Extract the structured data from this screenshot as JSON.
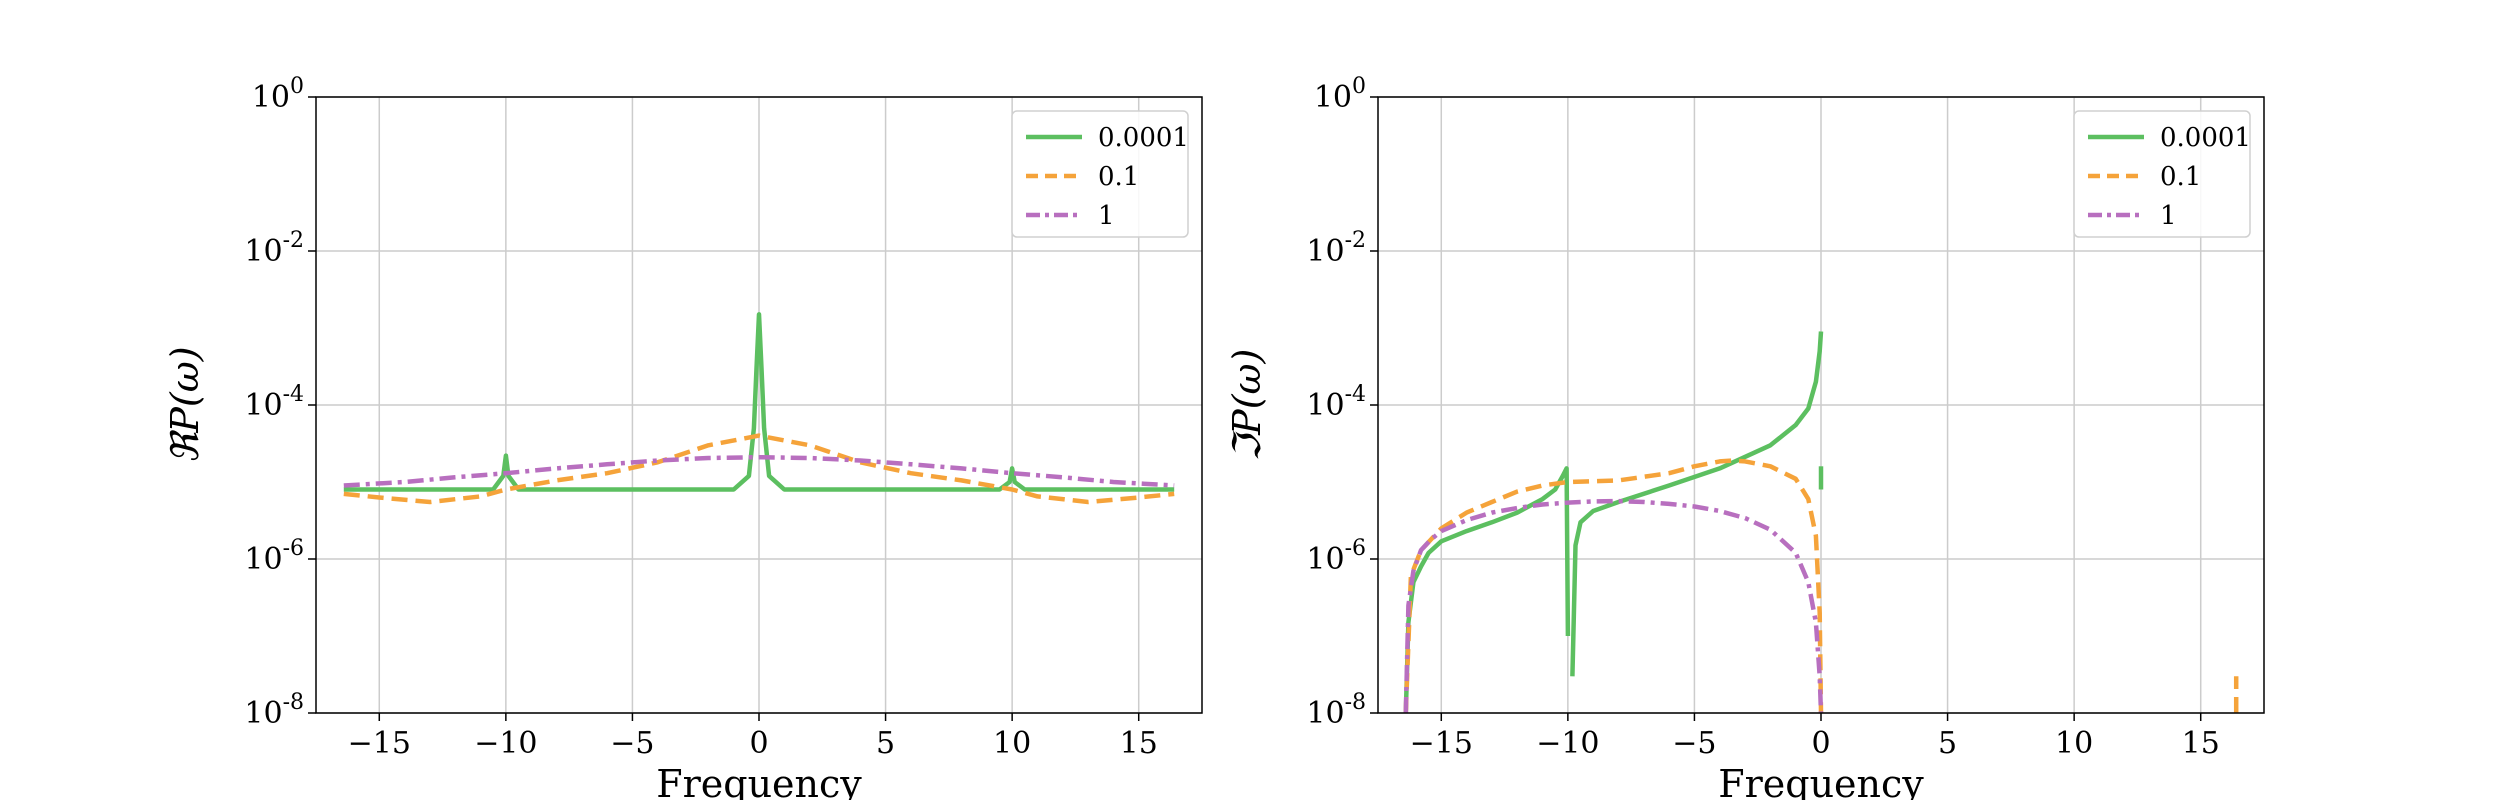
{
  "chart_data": [
    {
      "type": "line",
      "xlabel": "Frequency",
      "ylabel": "ℜP(ω)",
      "xlim": [
        -17.5,
        17.5
      ],
      "ylim": [
        1e-08,
        1
      ],
      "yscale": "log",
      "grid": true,
      "legend_position": "top-right",
      "xticks": [
        "−15",
        "−10",
        "−5",
        "0",
        "5",
        "10",
        "15"
      ],
      "xtick_values": [
        -15,
        -10,
        -5,
        0,
        5,
        10,
        15
      ],
      "yticks": [
        {
          "base": "10",
          "exp": "0"
        },
        {
          "base": "10",
          "exp": "-2"
        },
        {
          "base": "10",
          "exp": "-4"
        },
        {
          "base": "10",
          "exp": "-6"
        },
        {
          "base": "10",
          "exp": "-8"
        }
      ],
      "ytick_values": [
        1,
        0.01,
        0.0001,
        1e-06,
        1e-08
      ],
      "series": [
        {
          "name": "0.0001",
          "color": "#5cbf60",
          "dash": "solid",
          "x": [
            -16.4,
            -12,
            -10.5,
            -10.1,
            -10,
            -9.9,
            -9.5,
            -5,
            -1,
            -0.4,
            -0.2,
            -0.1,
            0,
            0.1,
            0.2,
            0.4,
            1,
            5,
            9.5,
            9.9,
            10,
            10.1,
            10.5,
            12,
            16.4
          ],
          "y": [
            8e-06,
            8e-06,
            8e-06,
            1.2e-05,
            2.2e-05,
            1.2e-05,
            8e-06,
            8e-06,
            8e-06,
            1.2e-05,
            5e-05,
            0.0003,
            0.0015,
            0.0003,
            5e-05,
            1.2e-05,
            8e-06,
            8e-06,
            8e-06,
            1e-05,
            1.5e-05,
            1e-05,
            8e-06,
            8e-06,
            8e-06
          ]
        },
        {
          "name": "0.1",
          "color": "#f5a33a",
          "dash": "dashed",
          "x": [
            -16.4,
            -15,
            -13,
            -11,
            -10,
            -8,
            -6,
            -4,
            -2,
            0,
            2,
            4,
            6,
            8,
            10,
            11,
            13,
            15,
            16.4
          ],
          "y": [
            7e-06,
            6.3e-06,
            5.5e-06,
            6.5e-06,
            8e-06,
            1.05e-05,
            1.3e-05,
            1.8e-05,
            3e-05,
            4e-05,
            3e-05,
            1.8e-05,
            1.3e-05,
            1.05e-05,
            8e-06,
            6.5e-06,
            5.5e-06,
            6.3e-06,
            7e-06
          ]
        },
        {
          "name": "1",
          "color": "#b86fbf",
          "dash": "dashdot",
          "x": [
            -16.4,
            -14,
            -12,
            -10,
            -8,
            -6,
            -4,
            -2,
            0,
            2,
            4,
            6,
            8,
            10,
            12,
            14,
            16.4
          ],
          "y": [
            9e-06,
            1e-05,
            1.15e-05,
            1.3e-05,
            1.5e-05,
            1.7e-05,
            1.9e-05,
            2.05e-05,
            2.1e-05,
            2.05e-05,
            1.9e-05,
            1.7e-05,
            1.5e-05,
            1.3e-05,
            1.15e-05,
            1e-05,
            9e-06
          ]
        }
      ]
    },
    {
      "type": "line",
      "xlabel": "Frequency",
      "ylabel": "ℑP(ω)",
      "xlim": [
        -17.5,
        17.5
      ],
      "ylim": [
        1e-08,
        1
      ],
      "yscale": "log",
      "grid": true,
      "legend_position": "top-right",
      "xticks": [
        "−15",
        "−10",
        "−5",
        "0",
        "5",
        "10",
        "15"
      ],
      "xtick_values": [
        -15,
        -10,
        -5,
        0,
        5,
        10,
        15
      ],
      "yticks": [
        {
          "base": "10",
          "exp": "0"
        },
        {
          "base": "10",
          "exp": "-2"
        },
        {
          "base": "10",
          "exp": "-4"
        },
        {
          "base": "10",
          "exp": "-6"
        },
        {
          "base": "10",
          "exp": "-8"
        }
      ],
      "ytick_values": [
        1,
        0.01,
        0.0001,
        1e-06,
        1e-08
      ],
      "series": [
        {
          "name": "0.0001",
          "color": "#5cbf60",
          "dash": "solid",
          "segments": [
            {
              "x": [
                -16.4,
                -16.3,
                -16.1,
                -15.8,
                -15.5,
                -15,
                -14,
                -13,
                -12,
                -11,
                -10.5,
                -10.2,
                -10.05,
                -10.0
              ],
              "y": [
                1e-08,
                1.5e-07,
                5e-07,
                8e-07,
                1.2e-06,
                1.7e-06,
                2.3e-06,
                3e-06,
                4e-06,
                6e-06,
                8e-06,
                1.2e-05,
                1.5e-05,
                1e-07
              ]
            },
            {
              "x": [
                -9.82,
                -9.7,
                -9.5,
                -9,
                -8,
                -6,
                -4,
                -2,
                -1,
                -0.5,
                -0.2,
                -0.05,
                0
              ],
              "y": [
                3e-08,
                1.5e-06,
                3e-06,
                4.2e-06,
                5.5e-06,
                9e-06,
                1.5e-05,
                3e-05,
                5.5e-05,
                9e-05,
                0.0002,
                0.0005,
                0.0009
              ]
            },
            {
              "x": [
                0,
                0
              ],
              "y": [
                1.6e-05,
                8e-06
              ]
            }
          ]
        },
        {
          "name": "0.1",
          "color": "#f5a33a",
          "dash": "dashed",
          "segments": [
            {
              "x": [
                -16.4,
                -16.2,
                -15.8,
                -15,
                -14,
                -13,
                -12,
                -11,
                -10,
                -8,
                -6,
                -5,
                -4,
                -3.5,
                -3,
                -2,
                -1,
                -0.5,
                -0.2,
                -0.05,
                0
              ],
              "y": [
                1e-08,
                6e-07,
                1.3e-06,
                2.5e-06,
                4e-06,
                5.5e-06,
                7.5e-06,
                9e-06,
                1e-05,
                1.05e-05,
                1.3e-05,
                1.6e-05,
                1.85e-05,
                1.9e-05,
                1.85e-05,
                1.6e-05,
                1.1e-05,
                6e-06,
                2e-06,
                2e-07,
                1e-08
              ]
            },
            {
              "x": [
                16.4,
                16.4
              ],
              "y": [
                1e-08,
                3e-08
              ]
            }
          ]
        },
        {
          "name": "1",
          "color": "#b86fbf",
          "dash": "dashdot",
          "segments": [
            {
              "x": [
                -16.4,
                -16.3,
                -16.1,
                -15.8,
                -15.4,
                -15,
                -14,
                -13,
                -12,
                -11,
                -10,
                -9,
                -8,
                -7,
                -6,
                -5,
                -4,
                -3,
                -2,
                -1,
                -0.5,
                -0.2,
                -0.05,
                0
              ],
              "y": [
                1e-08,
                2.5e-07,
                7e-07,
                1.3e-06,
                1.8e-06,
                2.3e-06,
                3.2e-06,
                4e-06,
                4.6e-06,
                5.1e-06,
                5.4e-06,
                5.6e-06,
                5.65e-06,
                5.5e-06,
                5.2e-06,
                4.8e-06,
                4.2e-06,
                3.4e-06,
                2.4e-06,
                1.2e-06,
                5e-07,
                1.5e-07,
                3e-08,
                1e-08
              ]
            }
          ]
        }
      ]
    }
  ]
}
